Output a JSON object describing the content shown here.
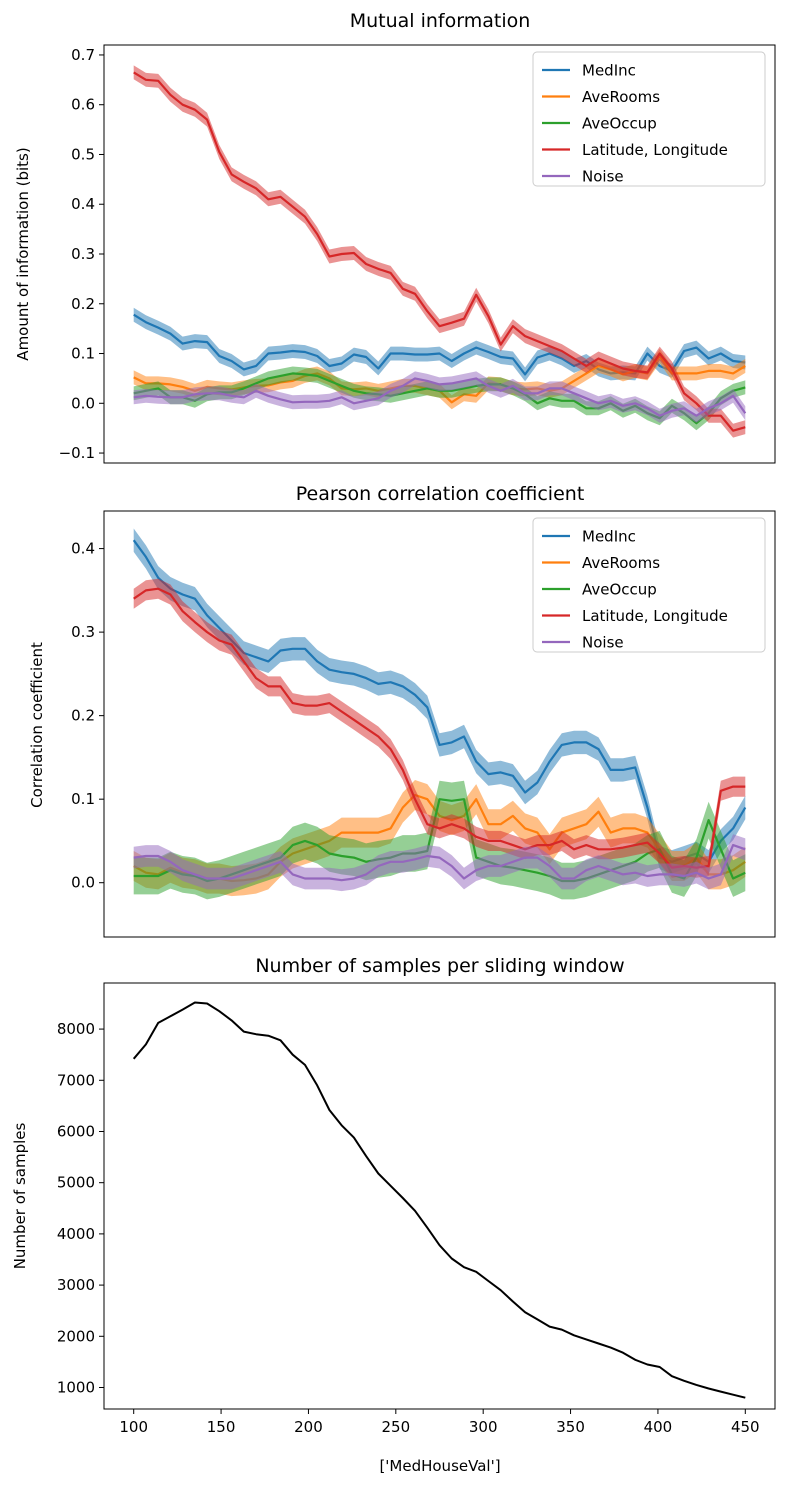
{
  "xlabel": "['MedHouseVal']",
  "x": [
    100,
    107,
    114,
    121,
    128,
    135,
    142,
    149,
    156,
    163,
    170,
    177,
    184,
    191,
    198,
    205,
    212,
    219,
    226,
    233,
    240,
    247,
    254,
    261,
    268,
    275,
    282,
    289,
    296,
    303,
    310,
    317,
    324,
    331,
    338,
    345,
    352,
    359,
    366,
    373,
    380,
    387,
    394,
    401,
    408,
    415,
    422,
    429,
    436,
    443,
    450
  ],
  "colors": {
    "MedInc": "#1f77b4",
    "AveRooms": "#ff7f0e",
    "AveOccup": "#2ca02c",
    "Latitude, Longitude": "#d62728",
    "Noise": "#9467bd",
    "samples": "#000000"
  },
  "chart_data": [
    {
      "type": "line",
      "title": "Mutual information",
      "xlabel": "",
      "ylabel": "Amount of information (bits)",
      "ylim": [
        -0.12,
        0.72
      ],
      "yticks": [
        -0.1,
        0.0,
        0.1,
        0.2,
        0.3,
        0.4,
        0.5,
        0.6,
        0.7
      ],
      "ytick_labels": [
        "−0.1",
        "0.0",
        "0.1",
        "0.2",
        "0.3",
        "0.4",
        "0.5",
        "0.6",
        "0.7"
      ],
      "xticks_visible": false,
      "legend": "top-right",
      "band": true,
      "series": [
        {
          "name": "MedInc",
          "values": [
            0.178,
            0.163,
            0.152,
            0.14,
            0.12,
            0.125,
            0.123,
            0.095,
            0.085,
            0.068,
            0.075,
            0.1,
            0.102,
            0.105,
            0.103,
            0.095,
            0.075,
            0.08,
            0.098,
            0.093,
            0.07,
            0.1,
            0.1,
            0.098,
            0.098,
            0.1,
            0.085,
            0.1,
            0.112,
            0.103,
            0.093,
            0.09,
            0.058,
            0.092,
            0.1,
            0.09,
            0.075,
            0.085,
            0.068,
            0.06,
            0.062,
            0.06,
            0.1,
            0.075,
            0.065,
            0.105,
            0.112,
            0.09,
            0.1,
            0.085,
            0.082
          ],
          "err": 0.014
        },
        {
          "name": "AveRooms",
          "values": [
            0.052,
            0.04,
            0.04,
            0.038,
            0.033,
            0.025,
            0.033,
            0.03,
            0.028,
            0.032,
            0.035,
            0.036,
            0.042,
            0.045,
            0.055,
            0.06,
            0.05,
            0.03,
            0.028,
            0.03,
            0.025,
            0.03,
            0.035,
            0.035,
            0.03,
            0.025,
            0.002,
            0.018,
            0.015,
            0.04,
            0.038,
            0.03,
            0.028,
            0.03,
            0.025,
            0.03,
            0.045,
            0.06,
            0.075,
            0.068,
            0.058,
            0.065,
            0.06,
            0.095,
            0.06,
            0.06,
            0.06,
            0.065,
            0.065,
            0.06,
            0.075
          ],
          "err": 0.014
        },
        {
          "name": "AveOccup",
          "values": [
            0.02,
            0.025,
            0.03,
            0.012,
            0.012,
            0.005,
            0.018,
            0.022,
            0.022,
            0.03,
            0.04,
            0.05,
            0.055,
            0.06,
            0.058,
            0.055,
            0.045,
            0.035,
            0.025,
            0.02,
            0.018,
            0.015,
            0.02,
            0.025,
            0.03,
            0.025,
            0.025,
            0.03,
            0.035,
            0.038,
            0.038,
            0.03,
            0.018,
            0.0,
            0.01,
            0.005,
            0.005,
            -0.01,
            -0.01,
            0.0,
            -0.015,
            -0.005,
            -0.02,
            -0.03,
            -0.005,
            -0.02,
            -0.04,
            -0.02,
            0.01,
            0.025,
            0.032
          ],
          "err": 0.014
        },
        {
          "name": "Latitude, Longitude",
          "values": [
            0.665,
            0.65,
            0.648,
            0.62,
            0.6,
            0.59,
            0.57,
            0.505,
            0.46,
            0.445,
            0.432,
            0.41,
            0.415,
            0.395,
            0.375,
            0.34,
            0.295,
            0.3,
            0.302,
            0.28,
            0.27,
            0.262,
            0.23,
            0.22,
            0.185,
            0.155,
            0.162,
            0.17,
            0.218,
            0.175,
            0.118,
            0.155,
            0.135,
            0.125,
            0.115,
            0.105,
            0.09,
            0.075,
            0.09,
            0.08,
            0.07,
            0.065,
            0.062,
            0.1,
            0.07,
            0.02,
            0.0,
            -0.025,
            -0.025,
            -0.055,
            -0.048
          ],
          "err": 0.014
        },
        {
          "name": "Noise",
          "values": [
            0.012,
            0.015,
            0.013,
            0.012,
            0.012,
            0.018,
            0.02,
            0.02,
            0.015,
            0.012,
            0.025,
            0.015,
            0.008,
            0.002,
            0.003,
            0.003,
            0.005,
            0.012,
            0.0,
            0.005,
            0.01,
            0.025,
            0.035,
            0.05,
            0.045,
            0.038,
            0.04,
            0.045,
            0.05,
            0.035,
            0.025,
            0.035,
            0.02,
            0.02,
            0.03,
            0.03,
            0.02,
            0.01,
            0.0,
            0.005,
            -0.005,
            0.0,
            -0.01,
            -0.025,
            -0.015,
            -0.01,
            -0.025,
            -0.01,
            0.0,
            0.015,
            -0.02
          ],
          "err": 0.014
        }
      ]
    },
    {
      "type": "line",
      "title": "Pearson correlation coefficient",
      "xlabel": "",
      "ylabel": "Correlation coefficient",
      "ylim": [
        -0.065,
        0.445
      ],
      "yticks": [
        0.0,
        0.1,
        0.2,
        0.3,
        0.4
      ],
      "ytick_labels": [
        "0.0",
        "0.1",
        "0.2",
        "0.3",
        "0.4"
      ],
      "xticks_visible": false,
      "legend": "top-right",
      "band": true,
      "series": [
        {
          "name": "MedInc",
          "values": [
            0.41,
            0.39,
            0.365,
            0.352,
            0.345,
            0.34,
            0.32,
            0.305,
            0.29,
            0.275,
            0.27,
            0.265,
            0.278,
            0.28,
            0.28,
            0.265,
            0.255,
            0.252,
            0.25,
            0.245,
            0.238,
            0.24,
            0.235,
            0.225,
            0.21,
            0.165,
            0.168,
            0.175,
            0.145,
            0.13,
            0.132,
            0.128,
            0.108,
            0.12,
            0.145,
            0.165,
            0.168,
            0.168,
            0.16,
            0.135,
            0.135,
            0.138,
            0.09,
            0.03,
            0.025,
            0.03,
            0.035,
            0.025,
            0.05,
            0.065,
            0.09
          ],
          "err": 0.014
        },
        {
          "name": "AveRooms",
          "values": [
            0.02,
            0.012,
            0.01,
            0.018,
            0.012,
            0.01,
            0.005,
            0.005,
            0.002,
            0.003,
            0.005,
            0.01,
            0.025,
            0.035,
            0.04,
            0.045,
            0.05,
            0.06,
            0.06,
            0.06,
            0.06,
            0.065,
            0.09,
            0.105,
            0.1,
            0.08,
            0.075,
            0.08,
            0.1,
            0.07,
            0.07,
            0.08,
            0.065,
            0.06,
            0.04,
            0.06,
            0.065,
            0.07,
            0.085,
            0.06,
            0.065,
            0.065,
            0.06,
            0.04,
            0.02,
            0.02,
            0.03,
            0.01,
            0.01,
            0.015,
            0.025
          ],
          "err": 0.018
        },
        {
          "name": "AveOccup",
          "values": [
            0.008,
            0.008,
            0.008,
            0.015,
            0.01,
            0.008,
            0.002,
            0.005,
            0.01,
            0.015,
            0.02,
            0.025,
            0.03,
            0.045,
            0.05,
            0.045,
            0.035,
            0.032,
            0.03,
            0.025,
            0.028,
            0.03,
            0.035,
            0.035,
            0.038,
            0.1,
            0.098,
            0.1,
            0.03,
            0.025,
            0.02,
            0.018,
            0.015,
            0.012,
            0.008,
            0.002,
            0.002,
            0.005,
            0.01,
            0.015,
            0.02,
            0.025,
            0.035,
            0.04,
            0.01,
            0.005,
            0.03,
            0.075,
            0.04,
            0.005,
            0.012
          ],
          "err": 0.022
        },
        {
          "name": "Latitude, Longitude",
          "values": [
            0.34,
            0.35,
            0.352,
            0.345,
            0.325,
            0.312,
            0.3,
            0.29,
            0.285,
            0.265,
            0.245,
            0.235,
            0.235,
            0.215,
            0.212,
            0.212,
            0.215,
            0.205,
            0.195,
            0.185,
            0.175,
            0.16,
            0.135,
            0.1,
            0.07,
            0.065,
            0.07,
            0.065,
            0.055,
            0.05,
            0.05,
            0.045,
            0.04,
            0.045,
            0.045,
            0.05,
            0.04,
            0.045,
            0.04,
            0.04,
            0.042,
            0.045,
            0.048,
            0.035,
            0.018,
            0.02,
            0.018,
            0.02,
            0.11,
            0.115,
            0.115
          ],
          "err": 0.012
        },
        {
          "name": "Noise",
          "values": [
            0.03,
            0.032,
            0.032,
            0.025,
            0.015,
            0.01,
            0.005,
            0.005,
            0.005,
            0.01,
            0.015,
            0.02,
            0.025,
            0.01,
            0.005,
            0.005,
            0.005,
            0.003,
            0.005,
            0.01,
            0.02,
            0.025,
            0.025,
            0.028,
            0.032,
            0.03,
            0.02,
            0.005,
            0.015,
            0.02,
            0.02,
            0.025,
            0.03,
            0.03,
            0.02,
            0.005,
            0.005,
            0.015,
            0.02,
            0.015,
            0.01,
            0.012,
            0.008,
            0.01,
            0.01,
            0.008,
            0.012,
            0.005,
            0.01,
            0.045,
            0.04
          ],
          "err": 0.013
        }
      ]
    },
    {
      "type": "line",
      "title": "Number of samples per sliding window",
      "xlabel": "['MedHouseVal']",
      "ylabel": "Number of samples",
      "ylim": [
        580,
        8900
      ],
      "yticks": [
        1000,
        2000,
        3000,
        4000,
        5000,
        6000,
        7000,
        8000
      ],
      "ytick_labels": [
        "1000",
        "2000",
        "3000",
        "4000",
        "5000",
        "6000",
        "7000",
        "8000"
      ],
      "xticks": [
        100,
        150,
        200,
        250,
        300,
        350,
        400,
        450
      ],
      "xticks_visible": true,
      "legend": "none",
      "band": false,
      "series": [
        {
          "name": "",
          "color_key": "samples",
          "values": [
            7420,
            7700,
            8120,
            8250,
            8380,
            8520,
            8500,
            8350,
            8170,
            7950,
            7900,
            7870,
            7780,
            7500,
            7300,
            6900,
            6420,
            6120,
            5880,
            5520,
            5180,
            4940,
            4700,
            4450,
            4120,
            3780,
            3520,
            3350,
            3260,
            3080,
            2900,
            2680,
            2470,
            2330,
            2190,
            2130,
            2020,
            1940,
            1860,
            1780,
            1680,
            1540,
            1450,
            1400,
            1220,
            1130,
            1050,
            980,
            920,
            860,
            800
          ]
        }
      ]
    }
  ]
}
